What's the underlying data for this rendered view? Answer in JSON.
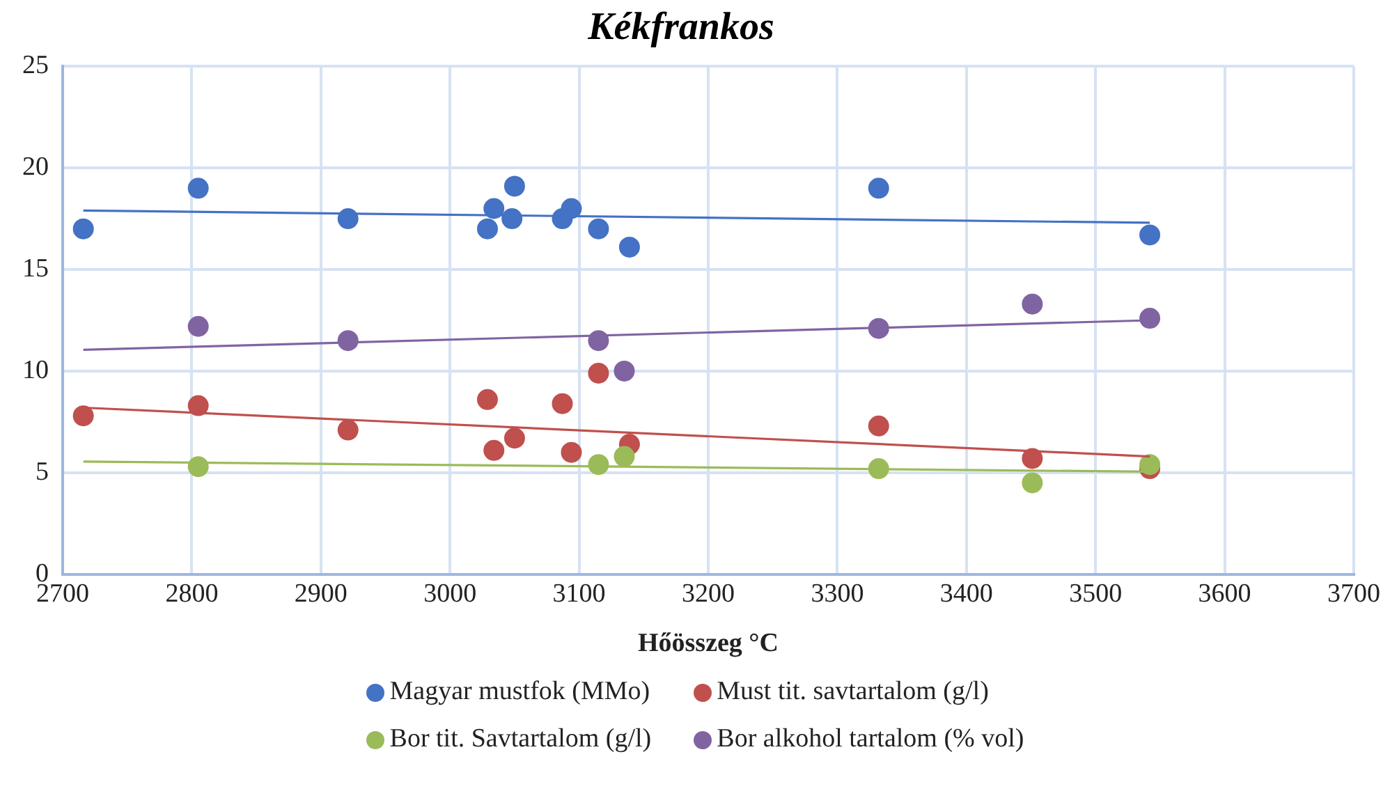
{
  "chart_data": {
    "type": "scatter",
    "title": "Kékfrankos",
    "xlabel": "Hőösszeg °C",
    "xlim": [
      2700,
      3700
    ],
    "xticks": [
      2700,
      2800,
      2900,
      3000,
      3100,
      3200,
      3300,
      3400,
      3500,
      3600,
      3700
    ],
    "ylim": [
      0,
      25
    ],
    "yticks": [
      0,
      5,
      10,
      15,
      20,
      25
    ],
    "grid": true,
    "legend": "bottom",
    "marker": "circle",
    "series": [
      {
        "name": "Magyar mustfok (MMo)",
        "color": "#4472c4",
        "x": [
          2716,
          2805,
          2921,
          3029,
          3034,
          3050,
          3048,
          3087,
          3094,
          3115,
          3139,
          3332,
          3542
        ],
        "values": [
          17.0,
          19.0,
          17.5,
          17.0,
          18.0,
          19.1,
          17.5,
          17.5,
          18.0,
          17.0,
          16.1,
          19.0,
          16.7
        ]
      },
      {
        "name": "Must tit. savtartalom (g/l)",
        "color": "#c0504d",
        "x": [
          2716,
          2805,
          2921,
          3029,
          3050,
          3034,
          3087,
          3094,
          3115,
          3139,
          3332,
          3451,
          3542
        ],
        "values": [
          7.8,
          8.3,
          7.1,
          8.6,
          6.7,
          6.1,
          8.4,
          6.0,
          9.9,
          6.4,
          7.3,
          5.7,
          5.2
        ]
      },
      {
        "name": "Bor tit. Savtartalom (g/l)",
        "color": "#9bbb59",
        "x": [
          2805,
          3115,
          3135,
          3332,
          3451,
          3542
        ],
        "values": [
          5.3,
          5.4,
          5.8,
          5.2,
          4.5,
          5.4
        ]
      },
      {
        "name": "Bor alkohol tartalom (% vol)",
        "color": "#8064a2",
        "x": [
          2805,
          2921,
          3115,
          3135,
          3332,
          3451,
          3542
        ],
        "values": [
          12.2,
          11.5,
          11.5,
          10.0,
          12.1,
          13.3,
          12.6
        ]
      },
      {
        "type": "line",
        "marker": "none",
        "color": "#4472c4",
        "x": [
          2716,
          3542
        ],
        "values": [
          17.9,
          17.3
        ]
      },
      {
        "type": "line",
        "marker": "none",
        "color": "#c0504d",
        "x": [
          2716,
          3542
        ],
        "values": [
          8.2,
          5.8
        ]
      },
      {
        "type": "line",
        "marker": "none",
        "color": "#9bbb59",
        "x": [
          2716,
          3542
        ],
        "values": [
          5.55,
          5.05
        ]
      },
      {
        "type": "line",
        "marker": "none",
        "color": "#8064a2",
        "x": [
          2716,
          3542
        ],
        "values": [
          11.05,
          12.5
        ]
      }
    ]
  }
}
